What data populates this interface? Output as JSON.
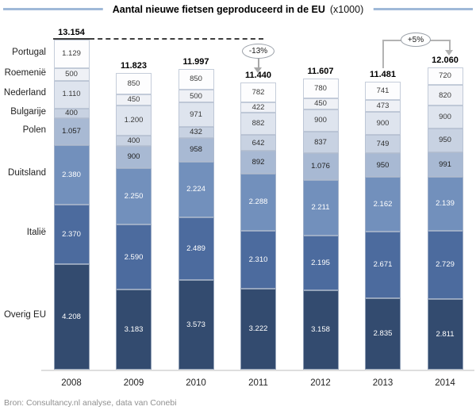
{
  "title": {
    "main": "Aantal nieuwe fietsen geproduceerd in de EU",
    "units": "(x1000)"
  },
  "source": "Bron: Consultancy.nl analyse, data van Conebi",
  "annotations": {
    "drop_label": "-13%",
    "rise_label": "+5%"
  },
  "colors": {
    "title_rule": "#9fb9d8",
    "dashed_line": "#3f3f3f",
    "annotation_gray": "#b3b3b3",
    "axis_line": "#dedede"
  },
  "chart_data": {
    "type": "bar",
    "stacked": true,
    "grid": false,
    "legend_position": "left-gutter",
    "ylim": [
      0,
      13154
    ],
    "categories": [
      "2008",
      "2009",
      "2010",
      "2011",
      "2012",
      "2013",
      "2014"
    ],
    "totals": [
      "13.154",
      "11.823",
      "11.997",
      "11.440",
      "11.607",
      "11.481",
      "12.060"
    ],
    "series": [
      {
        "name": "Portugal",
        "color": "#fdfdfe",
        "label_color": "#3a3a3a",
        "values": [
          "1.129",
          "850",
          "850",
          "782",
          "780",
          "741",
          "720"
        ]
      },
      {
        "name": "Roemenië",
        "color": "#eff1f6",
        "label_color": "#3a3a3a",
        "values": [
          "500",
          "450",
          "500",
          "422",
          "450",
          "473",
          "820"
        ]
      },
      {
        "name": "Nederland",
        "color": "#dee4ee",
        "label_color": "#3a3a3a",
        "values": [
          "1.110",
          "1.200",
          "971",
          "882",
          "900",
          "900",
          "900"
        ]
      },
      {
        "name": "Bulgarije",
        "color": "#c8d2e2",
        "label_color": "#2e2e2e",
        "values": [
          "400",
          "400",
          "432",
          "642",
          "837",
          "749",
          "950"
        ]
      },
      {
        "name": "Polen",
        "color": "#a8b9d3",
        "label_color": "#1f1f1f",
        "values": [
          "1.057",
          "900",
          "958",
          "892",
          "1.076",
          "950",
          "991"
        ]
      },
      {
        "name": "Duitsland",
        "color": "#7290bc",
        "label_color": "#ffffff",
        "values": [
          "2.380",
          "2.250",
          "2.224",
          "2.288",
          "2.211",
          "2.162",
          "2.139"
        ]
      },
      {
        "name": "Italië",
        "color": "#4c6b9e",
        "label_color": "#ffffff",
        "values": [
          "2.370",
          "2.590",
          "2.489",
          "2.310",
          "2.195",
          "2.671",
          "2.729"
        ]
      },
      {
        "name": "Overig EU",
        "color": "#334b6f",
        "label_color": "#ffffff",
        "values": [
          "4.208",
          "3.183",
          "3.573",
          "3.222",
          "3.158",
          "2.835",
          "2.811"
        ]
      }
    ]
  }
}
